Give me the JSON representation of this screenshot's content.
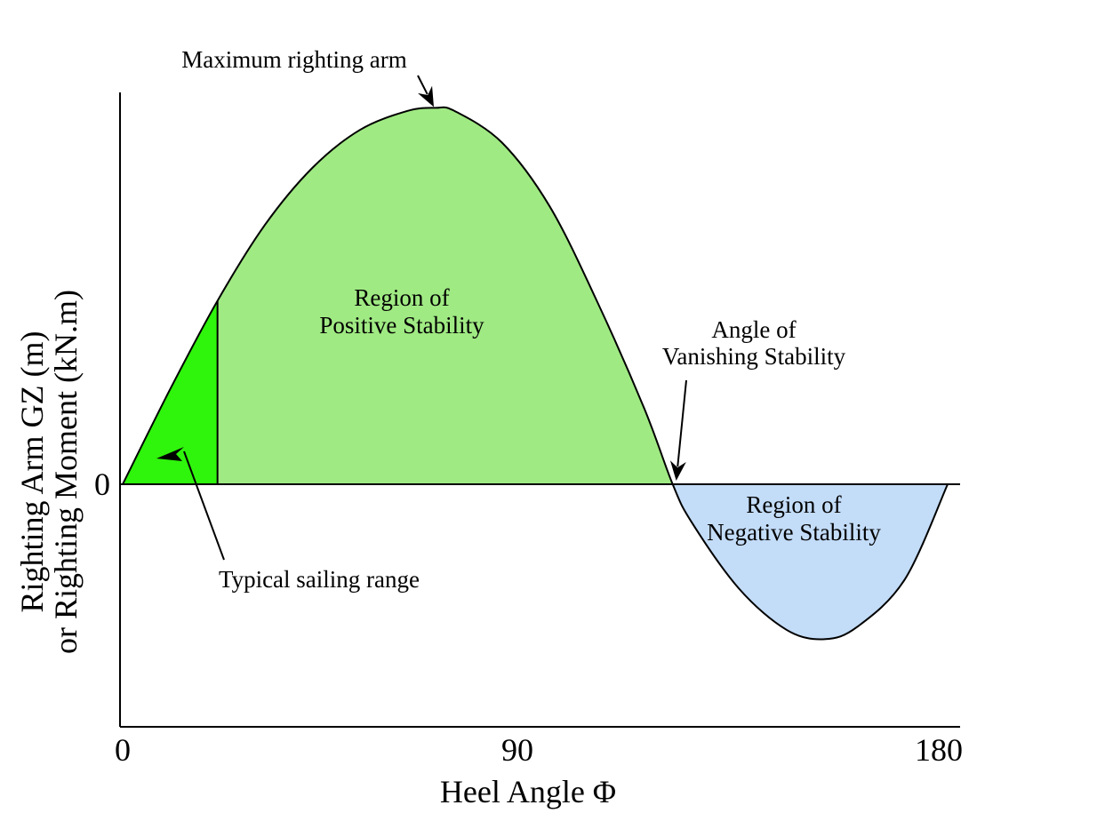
{
  "chart_data": {
    "type": "area",
    "title": "",
    "xlabel": "Heel Angle Φ",
    "ylabel_lines": [
      "Righting Arm GZ (m)",
      "or Righting Moment (kN.m)"
    ],
    "xlim": [
      0,
      180
    ],
    "ylim": [
      -1.0,
      1.3
    ],
    "x_ticks": [
      {
        "value": 0,
        "label": "0"
      },
      {
        "value": 90,
        "label": "90"
      },
      {
        "value": 180,
        "label": "180"
      }
    ],
    "y_ticks": [
      {
        "value": 0,
        "label": "0"
      }
    ],
    "grid": false,
    "series": [
      {
        "x": [
          0,
          10,
          20,
          30,
          40,
          50,
          60,
          66,
          70,
          80,
          90,
          100,
          110,
          116,
          120,
          130,
          140,
          148,
          155,
          165,
          174
        ],
        "y": [
          0,
          0.3,
          0.58,
          0.82,
          1.0,
          1.12,
          1.18,
          1.19,
          1.18,
          1.08,
          0.88,
          0.58,
          0.24,
          0,
          -0.12,
          -0.33,
          -0.46,
          -0.49,
          -0.45,
          -0.3,
          0
        ]
      }
    ],
    "regions": [
      {
        "label": "Region of\nPositive Stability",
        "x_range": [
          0,
          116
        ],
        "color": "#a0ea83"
      },
      {
        "label": "Typical sailing range",
        "x_range": [
          0,
          20
        ],
        "color": "#2ff40c"
      },
      {
        "label": "Region of\nNegative Stability",
        "x_range": [
          116,
          174
        ],
        "color": "#c3dcf8"
      }
    ],
    "annotations": [
      {
        "label": "Maximum righting arm",
        "x": 66,
        "y": 1.19
      },
      {
        "label": "Angle of\nVanishing Stability",
        "x": 116,
        "y": 0
      }
    ]
  },
  "colors": {
    "positive": "#a0ea83",
    "sailing": "#2ff40c",
    "negative": "#c3dcf8",
    "line": "#000000"
  }
}
